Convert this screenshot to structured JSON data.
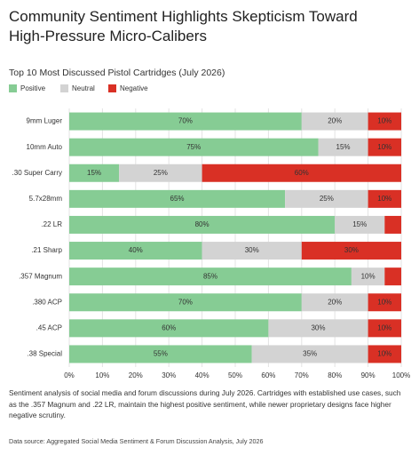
{
  "chart_data": {
    "type": "bar",
    "orientation": "horizontal",
    "stacked": true,
    "title": "Community Sentiment Highlights Skepticism Toward High-Pressure Micro-Calibers",
    "subtitle": "Top 10 Most Discussed Pistol Cartridges (July 2026)",
    "categories": [
      "9mm Luger",
      "10mm Auto",
      ".30 Super Carry",
      "5.7x28mm",
      ".22 LR",
      ".21 Sharp",
      ".357 Magnum",
      ".380 ACP",
      ".45 ACP",
      ".38 Special"
    ],
    "series": [
      {
        "name": "Positive",
        "color": "#86cc94",
        "values": [
          70,
          75,
          15,
          65,
          80,
          40,
          85,
          70,
          60,
          55
        ],
        "value_labels": [
          "70%",
          "75%",
          "15%",
          "65%",
          "80%",
          "40%",
          "85%",
          "70%",
          "60%",
          "55%"
        ]
      },
      {
        "name": "Neutral",
        "color": "#d3d3d3",
        "values": [
          20,
          15,
          25,
          25,
          15,
          30,
          10,
          20,
          30,
          35
        ],
        "value_labels": [
          "20%",
          "15%",
          "25%",
          "25%",
          "15%",
          "30%",
          "10%",
          "20%",
          "30%",
          "35%"
        ]
      },
      {
        "name": "Negative",
        "color": "#d93025",
        "values": [
          10,
          10,
          60,
          10,
          5,
          30,
          5,
          10,
          10,
          10
        ],
        "value_labels": [
          "10%",
          "10%",
          "60%",
          "10%",
          null,
          "30%",
          null,
          "10%",
          "10%",
          "10%"
        ]
      }
    ],
    "xlim": [
      0,
      100
    ],
    "xticks": [
      {
        "value": 0,
        "label": "0%"
      },
      {
        "value": 10,
        "label": "10%"
      },
      {
        "value": 20,
        "label": "20%"
      },
      {
        "value": 30,
        "label": "30%"
      },
      {
        "value": 40,
        "label": "40%"
      },
      {
        "value": 50,
        "label": "50%"
      },
      {
        "value": 60,
        "label": "60%"
      },
      {
        "value": 70,
        "label": "70%"
      },
      {
        "value": 80,
        "label": "80%"
      },
      {
        "value": 90,
        "label": "90%"
      },
      {
        "value": 100,
        "label": "100%"
      }
    ],
    "grid": true,
    "legend": "top-left",
    "caption": "Sentiment analysis of social media and forum discussions during July 2026. Cartridges with established use cases, such as the .357 Magnum and .22 LR, maintain the highest positive sentiment, while newer proprietary designs face higher negative scrutiny.",
    "source": "Data source: Aggregated Social Media Sentiment & Forum Discussion Analysis, July 2026"
  }
}
